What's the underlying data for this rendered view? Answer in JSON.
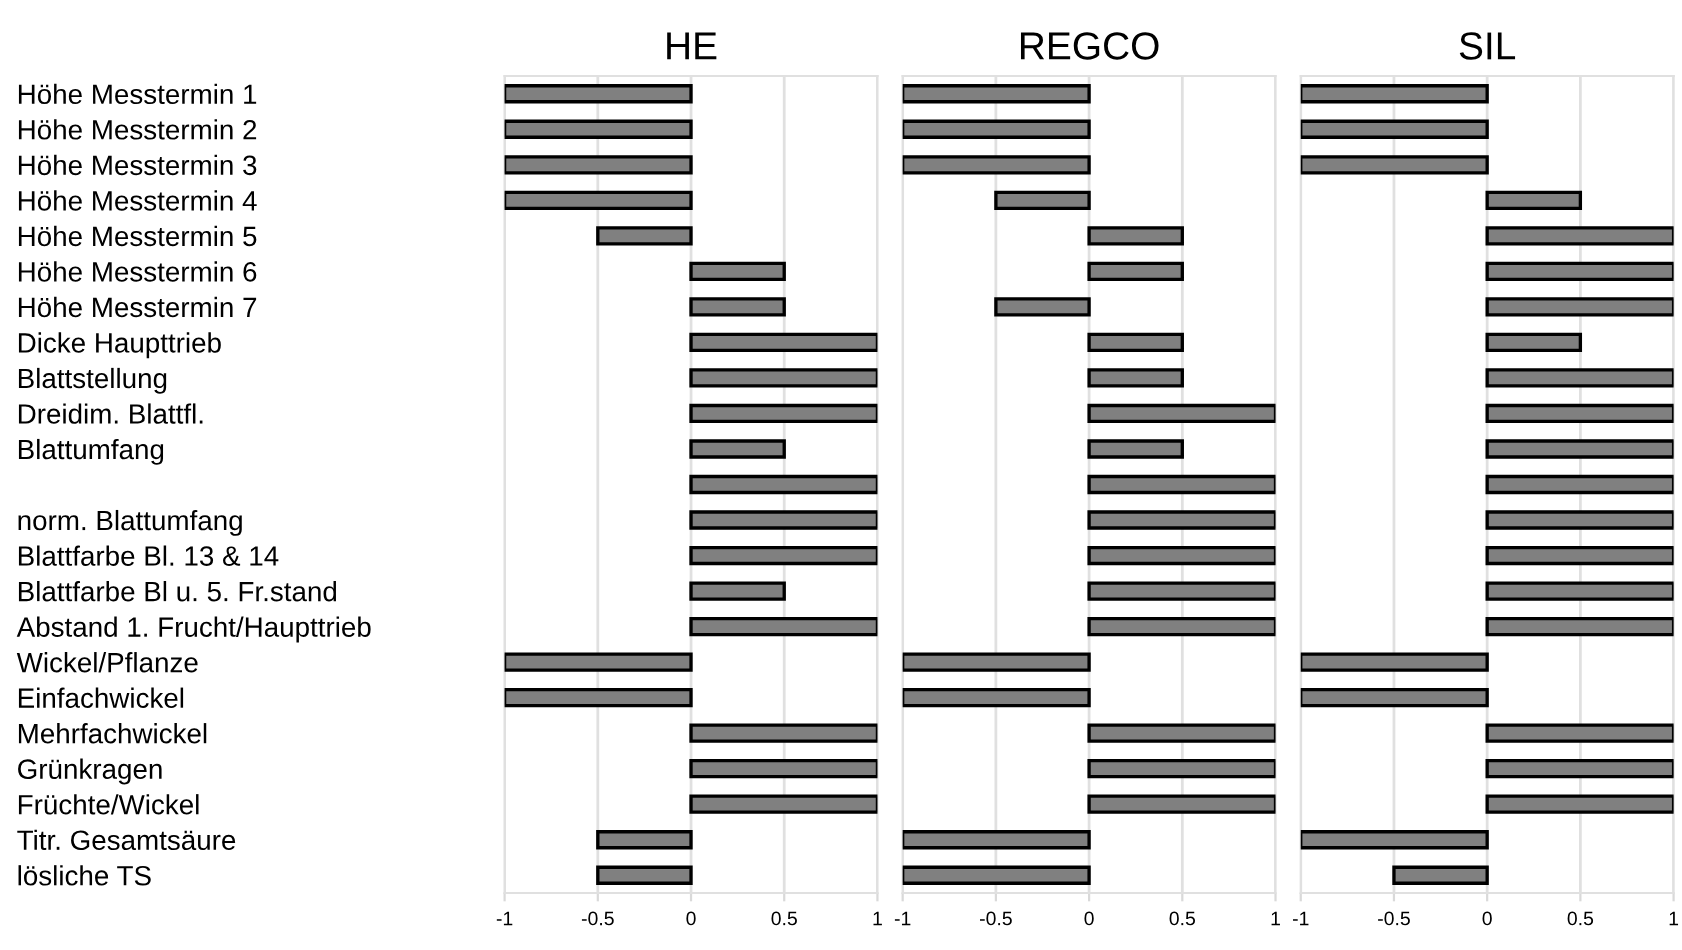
{
  "chart_data": [
    {
      "type": "bar",
      "orientation": "horizontal",
      "title": "HE",
      "color": "#808080",
      "grid": "x",
      "xlim": [
        -1,
        1
      ],
      "xticks": [
        -1,
        -0.5,
        0,
        0.5,
        1
      ],
      "categories": [
        "Höhe Messtermin 1",
        "Höhe Messtermin 2",
        "Höhe Messtermin 3",
        "Höhe Messtermin 4",
        "Höhe Messtermin 5",
        "Höhe Messtermin 6",
        "Höhe Messtermin 7",
        "Dicke Haupttrieb",
        "Blattstellung",
        "Dreidim. Blattfl.",
        "Blattumfang",
        null,
        "norm. Blattumfang",
        "Blattfarbe Bl. 13 & 14",
        "Blattfarbe Bl u. 5. Fr.stand",
        "Abstand 1. Frucht/Haupttrieb",
        "Wickel/Pflanze",
        "Einfachwickel",
        "Mehrfachwickel",
        "Grünkragen",
        "Früchte/Wickel",
        "Titr. Gesamtsäure",
        "lösliche TS"
      ],
      "values": [
        -1,
        -1,
        -1,
        -1,
        -0.5,
        0.5,
        0.5,
        1,
        1,
        1,
        0.5,
        1,
        1,
        1,
        0.5,
        1,
        -1,
        -1,
        1,
        1,
        1,
        -0.5,
        -0.5
      ]
    },
    {
      "type": "bar",
      "orientation": "horizontal",
      "title": "REGCO",
      "color": "#808080",
      "grid": "x",
      "xlim": [
        -1,
        1
      ],
      "xticks": [
        -1,
        -0.5,
        0,
        0.5,
        1
      ],
      "tick_labels": "x",
      "values": [
        -1,
        -1,
        -1,
        -0.5,
        0.5,
        0.5,
        -0.5,
        0.5,
        0.5,
        1,
        0.5,
        1,
        1,
        1,
        1,
        1,
        -1,
        -1,
        1,
        1,
        1,
        -1,
        -1
      ]
    },
    {
      "type": "bar",
      "orientation": "horizontal",
      "title": "SIL",
      "color": "#808080",
      "grid": "x",
      "xlim": [
        -1,
        1
      ],
      "xticks": [
        -1,
        -0.5,
        0,
        0.5,
        1
      ],
      "tick_labels": "x",
      "values": [
        -1,
        -1,
        -1,
        0.5,
        1,
        1,
        1,
        0.5,
        1,
        1,
        1,
        1,
        1,
        1,
        1,
        1,
        -1,
        -1,
        1,
        1,
        1,
        -1,
        -0.5
      ]
    }
  ]
}
